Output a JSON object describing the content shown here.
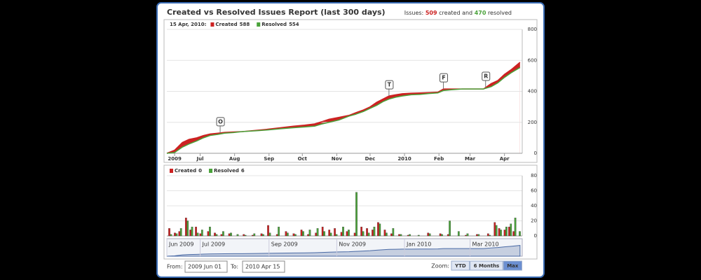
{
  "header": {
    "title": "Created vs Resolved Issues Report (last 300 days)",
    "issues_label": "Issues:",
    "created_count": 509,
    "created_text": "created and",
    "resolved_count": 470,
    "resolved_text": "resolved"
  },
  "chart_data": [
    {
      "type": "area",
      "legend_date": "15 Apr, 2010:",
      "xlim": [
        0,
        320
      ],
      "xticks": [
        {
          "value": 7,
          "label": "2009"
        },
        {
          "value": 30,
          "label": "Jul"
        },
        {
          "value": 61,
          "label": "Aug"
        },
        {
          "value": 92,
          "label": "Sep"
        },
        {
          "value": 122,
          "label": "Oct"
        },
        {
          "value": 153,
          "label": "Nov"
        },
        {
          "value": 183,
          "label": "Dec"
        },
        {
          "value": 214,
          "label": "2010"
        },
        {
          "value": 245,
          "label": "Feb"
        },
        {
          "value": 273,
          "label": "Mar"
        },
        {
          "value": 304,
          "label": "Apr"
        }
      ],
      "ylim": [
        0,
        800
      ],
      "yticks": [
        0,
        200,
        400,
        600,
        800
      ],
      "grid": true,
      "x": [
        0,
        7,
        14,
        20,
        27,
        33,
        39,
        46,
        52,
        60,
        68,
        80,
        90,
        102,
        114,
        124,
        133,
        140,
        146,
        155,
        164,
        170,
        177,
        183,
        189,
        195,
        200,
        206,
        212,
        220,
        228,
        236,
        244,
        249,
        256,
        266,
        276,
        285,
        292,
        298,
        304,
        310,
        318
      ],
      "series": [
        {
          "name": "Created",
          "color": "#cc2222",
          "current": 588,
          "values": [
            0,
            20,
            70,
            90,
            100,
            115,
            125,
            130,
            135,
            138,
            140,
            148,
            155,
            165,
            175,
            182,
            190,
            205,
            220,
            232,
            245,
            262,
            280,
            300,
            330,
            352,
            370,
            378,
            385,
            388,
            390,
            392,
            395,
            415,
            415,
            415,
            415,
            415,
            450,
            470,
            510,
            540,
            588
          ]
        },
        {
          "name": "Resolved",
          "color": "#4aa23a",
          "current": 554,
          "values": [
            0,
            5,
            40,
            60,
            80,
            100,
            115,
            122,
            130,
            134,
            140,
            145,
            150,
            158,
            165,
            170,
            175,
            190,
            200,
            215,
            240,
            252,
            270,
            290,
            310,
            335,
            350,
            362,
            370,
            378,
            380,
            386,
            390,
            405,
            410,
            415,
            415,
            415,
            430,
            455,
            490,
            520,
            554
          ]
        }
      ],
      "flags": [
        {
          "x": 48,
          "label": "O"
        },
        {
          "x": 200,
          "label": "T"
        },
        {
          "x": 249,
          "label": "F"
        },
        {
          "x": 287,
          "label": "R"
        }
      ]
    },
    {
      "type": "bar",
      "xlim": [
        0,
        320
      ],
      "ylim": [
        0,
        80
      ],
      "yticks": [
        0,
        20,
        40,
        60,
        80
      ],
      "grid": true,
      "x": [
        3,
        8,
        12,
        18,
        22,
        27,
        31,
        38,
        44,
        50,
        57,
        63,
        70,
        78,
        86,
        92,
        100,
        108,
        115,
        122,
        128,
        135,
        141,
        147,
        152,
        158,
        163,
        170,
        176,
        181,
        186,
        191,
        197,
        203,
        210,
        218,
        226,
        236,
        247,
        254,
        262,
        270,
        280,
        290,
        296,
        300,
        305,
        309,
        313,
        317
      ],
      "series": [
        {
          "name": "Created",
          "color": "#cc2222",
          "current": 0,
          "values": [
            10,
            4,
            6,
            24,
            8,
            12,
            3,
            6,
            4,
            2,
            3,
            0,
            2,
            1,
            3,
            14,
            2,
            6,
            3,
            8,
            2,
            4,
            12,
            8,
            10,
            5,
            6,
            4,
            12,
            10,
            8,
            18,
            8,
            3,
            2,
            1,
            0,
            4,
            3,
            2,
            0,
            1,
            2,
            3,
            18,
            10,
            8,
            12,
            6,
            0
          ]
        },
        {
          "name": "Resolved",
          "color": "#4aa23a",
          "current": 6,
          "values": [
            2,
            3,
            10,
            20,
            12,
            4,
            8,
            12,
            2,
            6,
            4,
            2,
            1,
            3,
            2,
            4,
            12,
            4,
            2,
            6,
            8,
            10,
            6,
            4,
            2,
            12,
            8,
            58,
            6,
            4,
            12,
            16,
            4,
            10,
            2,
            2,
            1,
            3,
            2,
            20,
            6,
            3,
            2,
            1,
            14,
            8,
            12,
            16,
            24,
            6
          ]
        }
      ]
    },
    {
      "type": "navigator",
      "xlim": [
        0,
        320
      ],
      "xticks": [
        {
          "value": 0,
          "label": "Jun 2009"
        },
        {
          "value": 30,
          "label": "Jul 2009"
        },
        {
          "value": 92,
          "label": "Sep 2009"
        },
        {
          "value": 153,
          "label": "Nov 2009"
        },
        {
          "value": 214,
          "label": "Jan 2010"
        },
        {
          "value": 273,
          "label": "Mar 2010"
        }
      ]
    }
  ],
  "footer": {
    "from_label": "From:",
    "from_value": "2009 Jun 01",
    "to_label": "To:",
    "to_value": "2010 Apr 15",
    "zoom_label": "Zoom:",
    "zoom_buttons": [
      "YTD",
      "6 Months",
      "Max"
    ]
  }
}
